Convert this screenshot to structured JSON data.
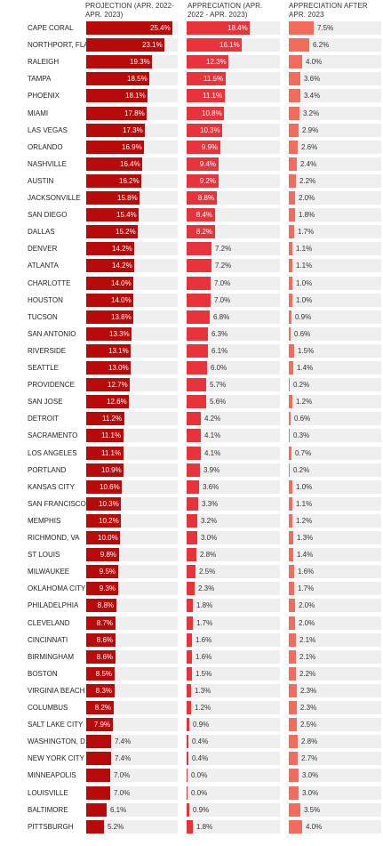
{
  "chart_data": {
    "type": "bar",
    "headers": [
      "PROJECTION (APR. 2022-APR. 2023)",
      "APPRECIATION (APR. 2022 - APR. 2023)",
      "APPRECIATION AFTER APR. 2023"
    ],
    "colors": [
      "#b90a0a",
      "#e8333a",
      "#f26b5b"
    ],
    "xlim": [
      [
        0,
        25.4
      ],
      [
        0,
        18.4
      ],
      [
        0,
        7.5
      ]
    ],
    "categories": [
      "CAPE CORAL",
      "NORTHPORT, FLA",
      "RALEIGH",
      "TAMPA",
      "PHOENIX",
      "MIAMI",
      "LAS VEGAS",
      "ORLANDO",
      "NASHVILLE",
      "AUSTIN",
      "JACKSONVILLE",
      "SAN DIEGO",
      "DALLAS",
      "DENVER",
      "ATLANTA",
      "CHARLOTTE",
      "HOUSTON",
      "TUCSON",
      "SAN ANTONIO",
      "RIVERSIDE",
      "SEATTLE",
      "PROVIDENCE",
      "SAN JOSE",
      "DETROIT",
      "SACRAMENTO",
      "LOS ANGELES",
      "PORTLAND",
      "KANSAS CITY",
      "SAN FRANCISCO",
      "MEMPHIS",
      "RICHMOND, VA",
      "ST LOUIS",
      "MILWAUKEE",
      "OKLAHOMA CITY",
      "PHILADELPHIA",
      "CLEVELAND",
      "CINCINNATI",
      "BIRMINGHAM",
      "BOSTON",
      "VIRGINIA BEACH",
      "COLUMBUS",
      "SALT LAKE CITY",
      "WASHINGTON, D.C.",
      "NEW YORK CITY",
      "MINNEAPOLIS",
      "LOUISVILLE",
      "BALTIMORE",
      "PITTSBURGH"
    ],
    "series": [
      {
        "values": [
          25.4,
          23.1,
          19.3,
          18.5,
          18.1,
          17.8,
          17.3,
          16.9,
          16.4,
          16.2,
          15.8,
          15.4,
          15.2,
          14.2,
          14.2,
          14.0,
          14.0,
          13.8,
          13.3,
          13.1,
          13.0,
          12.7,
          12.6,
          11.2,
          11.1,
          11.1,
          10.9,
          10.6,
          10.3,
          10.2,
          10.0,
          9.8,
          9.5,
          9.3,
          8.8,
          8.7,
          8.6,
          8.6,
          8.5,
          8.3,
          8.2,
          7.9,
          7.4,
          7.4,
          7.0,
          7.0,
          6.1,
          5.2
        ]
      },
      {
        "values": [
          18.4,
          16.1,
          12.3,
          11.5,
          11.1,
          10.8,
          10.3,
          9.9,
          9.4,
          9.2,
          8.8,
          8.4,
          8.2,
          7.2,
          7.2,
          7.0,
          7.0,
          6.8,
          6.3,
          6.1,
          6.0,
          5.7,
          5.6,
          4.2,
          4.1,
          4.1,
          3.9,
          3.6,
          3.3,
          3.2,
          3.0,
          2.8,
          2.5,
          2.3,
          1.8,
          1.7,
          1.6,
          1.6,
          1.5,
          1.3,
          1.2,
          0.9,
          0.4,
          0.4,
          0.0,
          0.0,
          0.9,
          1.8
        ]
      },
      {
        "values": [
          7.5,
          6.2,
          4.0,
          3.6,
          3.4,
          3.2,
          2.9,
          2.6,
          2.4,
          2.2,
          2.0,
          1.8,
          1.7,
          1.1,
          1.1,
          1.0,
          1.0,
          0.9,
          0.6,
          1.5,
          1.4,
          0.2,
          1.2,
          0.6,
          0.3,
          0.7,
          0.2,
          1.0,
          1.1,
          1.2,
          1.3,
          1.4,
          1.6,
          1.7,
          2.0,
          2.0,
          2.1,
          2.1,
          2.2,
          2.3,
          2.3,
          2.5,
          2.8,
          2.7,
          3.0,
          3.0,
          3.5,
          4.0
        ]
      }
    ]
  }
}
